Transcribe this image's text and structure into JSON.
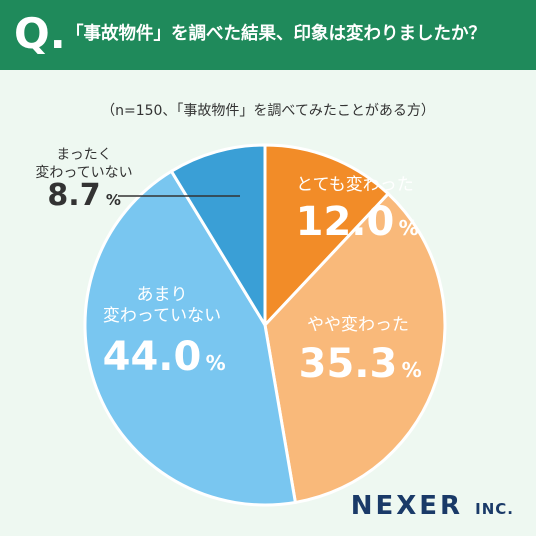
{
  "question": {
    "letter": "Q.",
    "text": "「事故物件」を調べた結果、印象は変わりましたか？"
  },
  "subtitle": "（n=150、「事故物件」を調べてみたことがある方）",
  "chart_data": {
    "type": "pie",
    "categories": [
      "とても変わった",
      "やや変わった",
      "あまり変わっていない",
      "まったく変わっていない"
    ],
    "values": [
      12.0,
      35.3,
      44.0,
      8.7
    ],
    "unit": "%",
    "colors": [
      "#f28c28",
      "#f9b97a",
      "#79c6f0",
      "#3a9fd6"
    ],
    "labels": [
      {
        "lines": [
          "とても変わった"
        ],
        "value": "12.0",
        "unit": "%"
      },
      {
        "lines": [
          "やや変わった"
        ],
        "value": "35.3",
        "unit": "%"
      },
      {
        "lines": [
          "あまり",
          "変わっていない"
        ],
        "value": "44.0",
        "unit": "%"
      },
      {
        "lines": [
          "まったく",
          "変わっていない"
        ],
        "value": "8.7",
        "unit": "%"
      }
    ]
  },
  "brand": {
    "name": "NEXER",
    "suffix": "INC."
  }
}
